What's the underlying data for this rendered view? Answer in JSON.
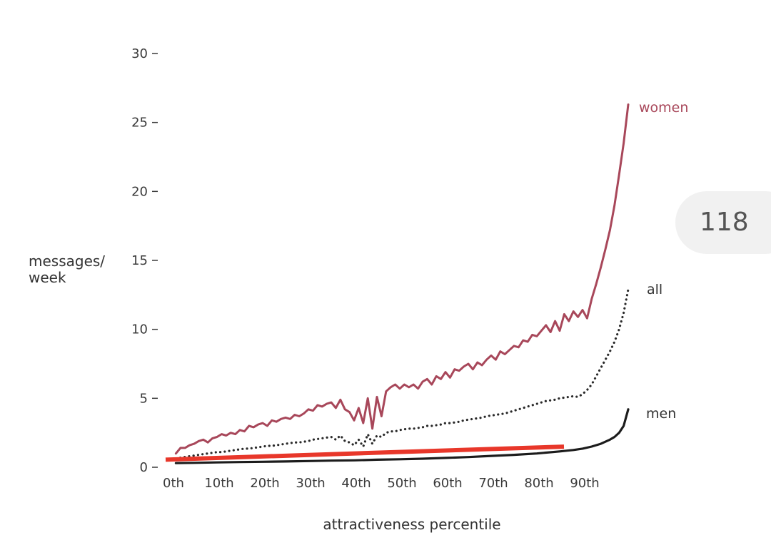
{
  "chart_data": {
    "type": "line",
    "title": "",
    "xlabel": "attractiveness percentile",
    "ylabel": "messages/\nweek",
    "ylabel_lines": [
      "messages/",
      "week"
    ],
    "xlim": [
      0,
      100
    ],
    "ylim": [
      0,
      30
    ],
    "y_ticks": [
      0,
      5,
      10,
      15,
      20,
      25,
      30
    ],
    "y_tick_labels": [
      "0",
      "5",
      "10",
      "15",
      "20",
      "25",
      "30"
    ],
    "x_ticks": [
      0,
      10,
      20,
      30,
      40,
      50,
      60,
      70,
      80,
      90
    ],
    "x_tick_labels": [
      "0th",
      "10th",
      "20th",
      "30th",
      "40th",
      "50th",
      "60th",
      "70th",
      "80th",
      "90th"
    ],
    "grid": false,
    "legend": "inline labels at line ends",
    "series": [
      {
        "name": "women",
        "style": "solid",
        "color": "#a8475a",
        "x": [
          1,
          2,
          3,
          4,
          5,
          6,
          7,
          8,
          9,
          10,
          11,
          12,
          13,
          14,
          15,
          16,
          17,
          18,
          19,
          20,
          21,
          22,
          23,
          24,
          25,
          26,
          27,
          28,
          29,
          30,
          31,
          32,
          33,
          34,
          35,
          36,
          37,
          38,
          39,
          40,
          41,
          42,
          43,
          44,
          45,
          46,
          47,
          48,
          49,
          50,
          51,
          52,
          53,
          54,
          55,
          56,
          57,
          58,
          59,
          60,
          61,
          62,
          63,
          64,
          65,
          66,
          67,
          68,
          69,
          70,
          71,
          72,
          73,
          74,
          75,
          76,
          77,
          78,
          79,
          80,
          81,
          82,
          83,
          84,
          85,
          86,
          87,
          88,
          89,
          90,
          91,
          92,
          93,
          94,
          95,
          96,
          97,
          98,
          99,
          100
        ],
        "y": [
          1.0,
          1.4,
          1.4,
          1.6,
          1.7,
          1.9,
          2.0,
          1.8,
          2.1,
          2.2,
          2.4,
          2.3,
          2.5,
          2.4,
          2.7,
          2.6,
          3.0,
          2.9,
          3.1,
          3.2,
          3.0,
          3.4,
          3.3,
          3.5,
          3.6,
          3.5,
          3.8,
          3.7,
          3.9,
          4.2,
          4.1,
          4.5,
          4.4,
          4.6,
          4.7,
          4.3,
          4.9,
          4.2,
          4.0,
          3.4,
          4.3,
          3.2,
          5.0,
          2.8,
          5.1,
          3.7,
          5.5,
          5.8,
          6.0,
          5.7,
          6.0,
          5.8,
          6.0,
          5.7,
          6.2,
          6.4,
          6.0,
          6.6,
          6.4,
          6.9,
          6.5,
          7.1,
          7.0,
          7.3,
          7.5,
          7.1,
          7.6,
          7.4,
          7.8,
          8.1,
          7.8,
          8.4,
          8.2,
          8.5,
          8.8,
          8.7,
          9.2,
          9.1,
          9.6,
          9.5,
          9.9,
          10.3,
          9.8,
          10.6,
          9.9,
          11.1,
          10.6,
          11.3,
          10.9,
          11.4,
          10.8,
          12.2,
          13.3,
          14.5,
          15.8,
          17.2,
          19.0,
          21.2,
          23.5,
          26.3
        ]
      },
      {
        "name": "all",
        "style": "dotted",
        "color": "#2a2a2a",
        "x": [
          1,
          2,
          3,
          4,
          5,
          6,
          7,
          8,
          9,
          10,
          11,
          12,
          13,
          14,
          15,
          16,
          17,
          18,
          19,
          20,
          21,
          22,
          23,
          24,
          25,
          26,
          27,
          28,
          29,
          30,
          31,
          32,
          33,
          34,
          35,
          36,
          37,
          38,
          39,
          40,
          41,
          42,
          43,
          44,
          45,
          46,
          47,
          48,
          49,
          50,
          51,
          52,
          53,
          54,
          55,
          56,
          57,
          58,
          59,
          60,
          61,
          62,
          63,
          64,
          65,
          66,
          67,
          68,
          69,
          70,
          71,
          72,
          73,
          74,
          75,
          76,
          77,
          78,
          79,
          80,
          81,
          82,
          83,
          84,
          85,
          86,
          87,
          88,
          89,
          90,
          91,
          92,
          93,
          94,
          95,
          96,
          97,
          98,
          99,
          100
        ],
        "y": [
          0.6,
          0.7,
          0.75,
          0.8,
          0.85,
          0.9,
          0.95,
          1.0,
          1.05,
          1.1,
          1.1,
          1.15,
          1.2,
          1.25,
          1.3,
          1.35,
          1.35,
          1.4,
          1.45,
          1.5,
          1.55,
          1.55,
          1.6,
          1.65,
          1.7,
          1.75,
          1.8,
          1.8,
          1.85,
          1.9,
          2.0,
          2.05,
          2.1,
          2.15,
          2.2,
          2.0,
          2.3,
          1.9,
          1.8,
          1.6,
          2.0,
          1.5,
          2.4,
          1.7,
          2.3,
          2.2,
          2.5,
          2.6,
          2.6,
          2.7,
          2.75,
          2.8,
          2.8,
          2.85,
          2.9,
          3.0,
          3.0,
          3.05,
          3.1,
          3.2,
          3.2,
          3.25,
          3.3,
          3.4,
          3.45,
          3.5,
          3.55,
          3.6,
          3.7,
          3.75,
          3.8,
          3.85,
          3.9,
          4.0,
          4.1,
          4.2,
          4.3,
          4.4,
          4.5,
          4.6,
          4.7,
          4.8,
          4.85,
          4.9,
          5.0,
          5.05,
          5.1,
          5.15,
          5.1,
          5.3,
          5.6,
          6.0,
          6.6,
          7.2,
          7.8,
          8.4,
          9.1,
          10.0,
          11.2,
          12.9
        ]
      },
      {
        "name": "men",
        "style": "solid",
        "color": "#1c1c1c",
        "x": [
          1,
          5,
          10,
          15,
          20,
          25,
          30,
          35,
          40,
          45,
          50,
          55,
          60,
          65,
          70,
          75,
          80,
          85,
          88,
          90,
          92,
          94,
          95,
          96,
          97,
          98,
          99,
          100
        ],
        "y": [
          0.3,
          0.32,
          0.35,
          0.38,
          0.4,
          0.42,
          0.45,
          0.48,
          0.5,
          0.55,
          0.58,
          0.62,
          0.68,
          0.74,
          0.82,
          0.9,
          1.0,
          1.15,
          1.25,
          1.35,
          1.5,
          1.7,
          1.85,
          2.0,
          2.2,
          2.5,
          3.0,
          4.2
        ]
      }
    ],
    "annotations": [
      {
        "type": "line",
        "color": "#e8372a",
        "x": [
          0,
          85
        ],
        "y": [
          0.5,
          1.6
        ]
      }
    ]
  },
  "page_badge": {
    "text": "118"
  }
}
